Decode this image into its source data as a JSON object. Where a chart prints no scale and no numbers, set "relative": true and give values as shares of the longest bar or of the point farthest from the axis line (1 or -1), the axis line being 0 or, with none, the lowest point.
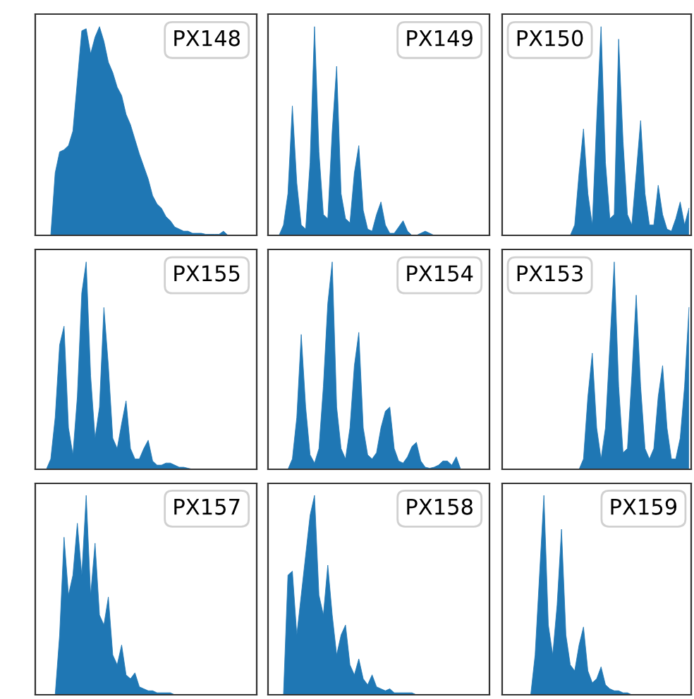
{
  "chart_data": [
    {
      "type": "area",
      "relative": true,
      "title": "PX148",
      "color": "#1f77b4",
      "categories": [
        null,
        null,
        null,
        null,
        null,
        null,
        null,
        null,
        null,
        null,
        null,
        null,
        null,
        null,
        null,
        null,
        null,
        null,
        null,
        null,
        null,
        null,
        null,
        null,
        null,
        null,
        null,
        null,
        null,
        null,
        null,
        null,
        null,
        null,
        null,
        null,
        null,
        null,
        null,
        null,
        null,
        null,
        null,
        null,
        null,
        null,
        null,
        null,
        null,
        null
      ],
      "values": [
        0,
        0,
        0,
        0,
        0.3,
        0.4,
        0.41,
        0.43,
        0.5,
        0.74,
        0.98,
        0.99,
        0.87,
        0.95,
        1.0,
        0.93,
        0.83,
        0.78,
        0.71,
        0.67,
        0.58,
        0.53,
        0.46,
        0.39,
        0.33,
        0.27,
        0.19,
        0.15,
        0.13,
        0.09,
        0.07,
        0.04,
        0.03,
        0.02,
        0.02,
        0.01,
        0.01,
        0.01,
        0.005,
        0.005,
        0.005,
        0.005,
        0.02,
        0,
        0,
        0,
        0,
        0,
        0,
        0
      ]
    },
    {
      "type": "area",
      "relative": true,
      "title": "PX149",
      "color": "#1f77b4",
      "categories": [
        null,
        null,
        null,
        null,
        null,
        null,
        null,
        null,
        null,
        null,
        null,
        null,
        null,
        null,
        null,
        null,
        null,
        null,
        null,
        null,
        null,
        null,
        null,
        null,
        null,
        null,
        null,
        null,
        null,
        null,
        null,
        null,
        null,
        null,
        null,
        null,
        null,
        null,
        null,
        null,
        null,
        null,
        null,
        null,
        null,
        null,
        null,
        null,
        null,
        null
      ],
      "values": [
        0,
        0,
        0,
        0.05,
        0.2,
        0.62,
        0.25,
        0.05,
        0.03,
        0.35,
        1.0,
        0.4,
        0.1,
        0.08,
        0.5,
        0.81,
        0.2,
        0.08,
        0.06,
        0.3,
        0.43,
        0.12,
        0.03,
        0.02,
        0.1,
        0.16,
        0.05,
        0.01,
        0.01,
        0.04,
        0.07,
        0.02,
        0,
        0,
        0.01,
        0.02,
        0.01,
        0,
        0,
        0,
        0,
        0,
        0,
        0,
        0,
        0,
        0,
        0,
        0,
        0
      ]
    },
    {
      "type": "area",
      "relative": true,
      "title": "PX150",
      "color": "#1f77b4",
      "categories": [
        null,
        null,
        null,
        null,
        null,
        null,
        null,
        null,
        null,
        null,
        null,
        null,
        null,
        null,
        null,
        null,
        null,
        null,
        null,
        null,
        null,
        null,
        null,
        null,
        null,
        null,
        null,
        null,
        null,
        null,
        null,
        null,
        null,
        null,
        null,
        null,
        null,
        null,
        null,
        null,
        null,
        null,
        null
      ],
      "values": [
        0,
        0,
        0,
        0,
        0,
        0,
        0,
        0,
        0,
        0,
        0,
        0,
        0,
        0,
        0,
        0,
        0.05,
        0.3,
        0.51,
        0.2,
        0.05,
        0.55,
        1.0,
        0.35,
        0.08,
        0.1,
        0.94,
        0.45,
        0.1,
        0.05,
        0.3,
        0.55,
        0.2,
        0.05,
        0.05,
        0.24,
        0.1,
        0.03,
        0.02,
        0.08,
        0.16,
        0.05,
        0.13
      ]
    },
    {
      "type": "area",
      "relative": true,
      "title": "PX155",
      "color": "#1f77b4",
      "categories": [
        null,
        null,
        null,
        null,
        null,
        null,
        null,
        null,
        null,
        null,
        null,
        null,
        null,
        null,
        null,
        null,
        null,
        null,
        null,
        null,
        null,
        null,
        null,
        null,
        null,
        null,
        null,
        null,
        null,
        null,
        null,
        null,
        null,
        null,
        null,
        null,
        null,
        null,
        null,
        null,
        null,
        null,
        null,
        null,
        null,
        null,
        null,
        null,
        null,
        null
      ],
      "values": [
        0,
        0,
        0,
        0.05,
        0.25,
        0.6,
        0.69,
        0.2,
        0.07,
        0.35,
        0.85,
        1.0,
        0.45,
        0.15,
        0.3,
        0.78,
        0.5,
        0.15,
        0.1,
        0.22,
        0.33,
        0.1,
        0.05,
        0.05,
        0.1,
        0.14,
        0.04,
        0.02,
        0.02,
        0.03,
        0.03,
        0.02,
        0.01,
        0.01,
        0.005,
        0,
        0,
        0,
        0,
        0,
        0,
        0,
        0,
        0,
        0,
        0,
        0,
        0,
        0,
        0
      ]
    },
    {
      "type": "area",
      "relative": true,
      "title": "PX154",
      "color": "#1f77b4",
      "categories": [
        null,
        null,
        null,
        null,
        null,
        null,
        null,
        null,
        null,
        null,
        null,
        null,
        null,
        null,
        null,
        null,
        null,
        null,
        null,
        null,
        null,
        null,
        null,
        null,
        null,
        null,
        null,
        null,
        null,
        null,
        null,
        null,
        null,
        null,
        null,
        null,
        null,
        null,
        null,
        null,
        null,
        null,
        null,
        null,
        null,
        null,
        null,
        null,
        null,
        null
      ],
      "values": [
        0,
        0,
        0,
        0,
        0,
        0.05,
        0.25,
        0.65,
        0.3,
        0.07,
        0.03,
        0.1,
        0.4,
        0.8,
        1.0,
        0.3,
        0.1,
        0.05,
        0.2,
        0.5,
        0.66,
        0.2,
        0.07,
        0.05,
        0.08,
        0.2,
        0.28,
        0.3,
        0.1,
        0.04,
        0.03,
        0.06,
        0.11,
        0.13,
        0.04,
        0.01,
        0.005,
        0.01,
        0.02,
        0.04,
        0.04,
        0.02,
        0.06,
        0,
        0,
        0,
        0,
        0,
        0,
        0
      ]
    },
    {
      "type": "area",
      "relative": true,
      "title": "PX153",
      "color": "#1f77b4",
      "categories": [
        null,
        null,
        null,
        null,
        null,
        null,
        null,
        null,
        null,
        null,
        null,
        null,
        null,
        null,
        null,
        null,
        null,
        null,
        null,
        null,
        null,
        null,
        null,
        null,
        null,
        null,
        null,
        null,
        null,
        null,
        null,
        null,
        null,
        null,
        null,
        null,
        null,
        null,
        null,
        null,
        null,
        null,
        null
      ],
      "values": [
        0,
        0,
        0,
        0,
        0,
        0,
        0,
        0,
        0,
        0,
        0,
        0,
        0,
        0,
        0,
        0,
        0,
        0,
        0.05,
        0.35,
        0.56,
        0.2,
        0.05,
        0.2,
        0.6,
        1.0,
        0.4,
        0.08,
        0.1,
        0.45,
        0.84,
        0.4,
        0.1,
        0.05,
        0.1,
        0.35,
        0.5,
        0.2,
        0.05,
        0.05,
        0.15,
        0.4,
        0.78
      ]
    },
    {
      "type": "area",
      "relative": true,
      "title": "PX157",
      "color": "#1f77b4",
      "categories": [
        null,
        null,
        null,
        null,
        null,
        null,
        null,
        null,
        null,
        null,
        null,
        null,
        null,
        null,
        null,
        null,
        null,
        null,
        null,
        null,
        null,
        null,
        null,
        null,
        null,
        null,
        null,
        null,
        null,
        null,
        null,
        null,
        null,
        null,
        null,
        null,
        null,
        null,
        null,
        null,
        null,
        null,
        null,
        null,
        null,
        null,
        null,
        null,
        null,
        null
      ],
      "values": [
        0,
        0,
        0,
        0,
        0,
        0.3,
        0.79,
        0.5,
        0.6,
        0.86,
        0.6,
        1.0,
        0.5,
        0.76,
        0.4,
        0.35,
        0.49,
        0.2,
        0.15,
        0.25,
        0.1,
        0.08,
        0.11,
        0.04,
        0.03,
        0.02,
        0.02,
        0.01,
        0.01,
        0.01,
        0.01,
        0,
        0,
        0,
        0,
        0,
        0,
        0,
        0,
        0,
        0,
        0,
        0,
        0,
        0,
        0,
        0,
        0,
        0,
        0
      ]
    },
    {
      "type": "area",
      "relative": true,
      "title": "PX158",
      "color": "#1f77b4",
      "categories": [
        null,
        null,
        null,
        null,
        null,
        null,
        null,
        null,
        null,
        null,
        null,
        null,
        null,
        null,
        null,
        null,
        null,
        null,
        null,
        null,
        null,
        null,
        null,
        null,
        null,
        null,
        null,
        null,
        null,
        null,
        null,
        null,
        null,
        null,
        null,
        null,
        null,
        null,
        null,
        null,
        null,
        null,
        null,
        null,
        null,
        null,
        null,
        null,
        null,
        null
      ],
      "values": [
        0,
        0,
        0,
        0,
        0.6,
        0.62,
        0.3,
        0.5,
        0.7,
        0.9,
        1.0,
        0.5,
        0.4,
        0.65,
        0.4,
        0.2,
        0.3,
        0.35,
        0.15,
        0.1,
        0.18,
        0.08,
        0.05,
        0.1,
        0.04,
        0.03,
        0.02,
        0.03,
        0.01,
        0.01,
        0.01,
        0.01,
        0.01,
        0,
        0,
        0,
        0,
        0,
        0,
        0,
        0,
        0,
        0,
        0,
        0,
        0,
        0,
        0,
        0,
        0
      ]
    },
    {
      "type": "area",
      "relative": true,
      "title": "PX159",
      "color": "#1f77b4",
      "categories": [
        null,
        null,
        null,
        null,
        null,
        null,
        null,
        null,
        null,
        null,
        null,
        null,
        null,
        null,
        null,
        null,
        null,
        null,
        null,
        null,
        null,
        null,
        null,
        null,
        null,
        null,
        null,
        null,
        null,
        null,
        null,
        null,
        null,
        null,
        null,
        null,
        null,
        null,
        null,
        null,
        null,
        null,
        null
      ],
      "values": [
        0,
        0,
        0,
        0,
        0,
        0,
        0,
        0.2,
        0.6,
        1.0,
        0.35,
        0.2,
        0.45,
        0.83,
        0.3,
        0.15,
        0.12,
        0.25,
        0.34,
        0.12,
        0.06,
        0.08,
        0.14,
        0.05,
        0.03,
        0.02,
        0.02,
        0.01,
        0.01,
        0,
        0,
        0,
        0,
        0,
        0,
        0,
        0,
        0,
        0,
        0,
        0,
        0,
        0
      ]
    }
  ]
}
